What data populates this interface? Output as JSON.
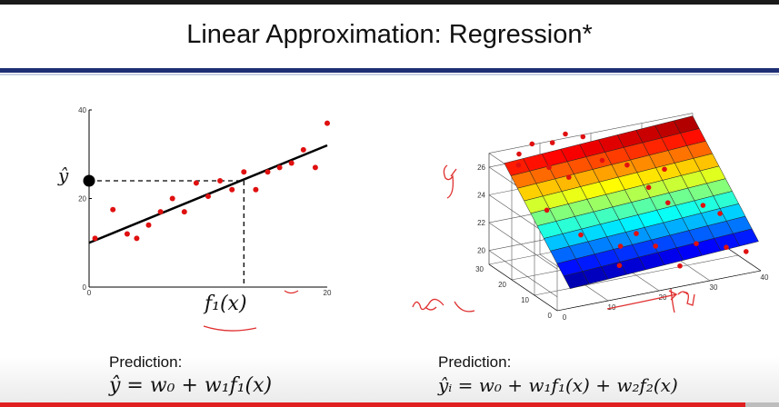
{
  "slide": {
    "title": "Linear Approximation: Regression*",
    "left_prediction_label": "Prediction:",
    "left_formula": "ŷ = w₀ + w₁f₁(x)",
    "right_prediction_label": "Prediction:",
    "right_formula": "ŷᵢ = w₀ + w₁f₁(x) + w₂f₂(x)",
    "left_yhat_label": "ŷ",
    "left_x_label": "f₁(x)"
  },
  "colors": {
    "title_rule": "#1e2f74",
    "points": "#e01010",
    "bottom_bar": "#e02020"
  },
  "chart_data": [
    {
      "type": "scatter",
      "title": "",
      "xlabel": "f₁(x)",
      "ylabel": "ŷ",
      "xlim": [
        0,
        20
      ],
      "ylim": [
        0,
        40
      ],
      "xticks": [
        0,
        20
      ],
      "yticks": [
        0,
        20,
        40
      ],
      "x": [
        0.5,
        2,
        3.2,
        4,
        5,
        6,
        7,
        8,
        9,
        10,
        11,
        12,
        13,
        14,
        15,
        16,
        17,
        18,
        19,
        20
      ],
      "y": [
        11,
        17.5,
        12,
        11,
        14,
        17,
        20,
        17,
        23.5,
        20.5,
        24,
        22,
        26,
        22,
        26,
        27,
        28,
        31,
        27,
        37
      ],
      "fit_line": {
        "x": [
          0,
          20
        ],
        "y": [
          10,
          32
        ]
      },
      "query": {
        "x": 13,
        "y": 24
      }
    },
    {
      "type": "surface",
      "title": "",
      "xlabel": "f₁(x)",
      "ylabel": "f₂(x)",
      "zlabel": "y",
      "xlim": [
        0,
        40
      ],
      "ylim": [
        0,
        30
      ],
      "zlim": [
        19,
        27
      ],
      "xticks": [
        0,
        10,
        20,
        30,
        40
      ],
      "yticks": [
        0,
        10,
        20,
        30
      ],
      "zticks": [
        20,
        22,
        24,
        26
      ],
      "colormap": "jet"
    }
  ]
}
